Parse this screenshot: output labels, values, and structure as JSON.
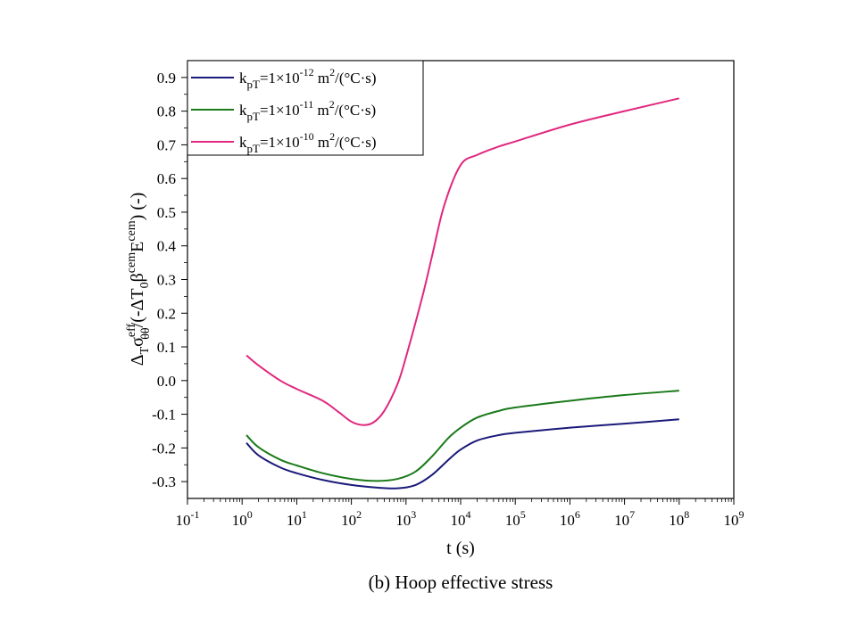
{
  "chart_data": {
    "type": "line",
    "title": "",
    "caption": "(b) Hoop effective stress",
    "xlabel": "t (s)",
    "ylabel": "ΔTσθθeff/(-ΔT0βcemEcem) (-)",
    "x_scale": "log",
    "xlim": [
      0.1,
      1000000000
    ],
    "ylim": [
      -0.35,
      0.95
    ],
    "x_ticks": [
      0.1,
      1,
      10,
      100,
      1000,
      10000,
      100000,
      1000000,
      10000000,
      100000000,
      1000000000
    ],
    "x_tick_labels": [
      {
        "base": "10",
        "exp": "-1"
      },
      {
        "base": "10",
        "exp": "0"
      },
      {
        "base": "10",
        "exp": "1"
      },
      {
        "base": "10",
        "exp": "2"
      },
      {
        "base": "10",
        "exp": "3"
      },
      {
        "base": "10",
        "exp": "4"
      },
      {
        "base": "10",
        "exp": "5"
      },
      {
        "base": "10",
        "exp": "6"
      },
      {
        "base": "10",
        "exp": "7"
      },
      {
        "base": "10",
        "exp": "8"
      },
      {
        "base": "10",
        "exp": "9"
      }
    ],
    "y_ticks": [
      -0.3,
      -0.2,
      -0.1,
      0.0,
      0.1,
      0.2,
      0.3,
      0.4,
      0.5,
      0.6,
      0.7,
      0.8,
      0.9
    ],
    "y_tick_labels": [
      "-0.3",
      "-0.2",
      "-0.1",
      "0.0",
      "0.1",
      "0.2",
      "0.3",
      "0.4",
      "0.5",
      "0.6",
      "0.7",
      "0.8",
      "0.9"
    ],
    "grid": false,
    "legend_position": "top-left",
    "series": [
      {
        "name": "kpT=1×10-12 m2/(°C·s)",
        "legend": {
          "k": "k",
          "sub": "pT",
          "pre": "=1×10",
          "exp": "-12",
          "unit": " m",
          "unit_exp": "2",
          "post": "/(°C·s)"
        },
        "color": "#1a1a7a",
        "x": [
          1.2,
          2,
          5,
          10,
          30,
          100,
          300,
          700,
          1500,
          3000,
          6000,
          10000,
          20000,
          50000,
          100000,
          1000000,
          10000000,
          100000000
        ],
        "y": [
          -0.185,
          -0.222,
          -0.258,
          -0.275,
          -0.295,
          -0.31,
          -0.318,
          -0.32,
          -0.31,
          -0.28,
          -0.235,
          -0.205,
          -0.178,
          -0.162,
          -0.155,
          -0.14,
          -0.128,
          -0.115
        ]
      },
      {
        "name": "kpT=1×10-11 m2/(°C·s)",
        "legend": {
          "k": "k",
          "sub": "pT",
          "pre": "=1×10",
          "exp": "-11",
          "unit": " m",
          "unit_exp": "2",
          "post": "/(°C·s)"
        },
        "color": "#1a7a1a",
        "x": [
          1.2,
          2,
          5,
          10,
          30,
          100,
          300,
          700,
          1500,
          3000,
          6000,
          10000,
          20000,
          50000,
          100000,
          1000000,
          10000000,
          100000000
        ],
        "y": [
          -0.162,
          -0.198,
          -0.235,
          -0.252,
          -0.275,
          -0.292,
          -0.298,
          -0.292,
          -0.27,
          -0.225,
          -0.17,
          -0.14,
          -0.11,
          -0.09,
          -0.08,
          -0.06,
          -0.043,
          -0.03
        ]
      },
      {
        "name": "kpT=1×10-10 m2/(°C·s)",
        "legend": {
          "k": "k",
          "sub": "pT",
          "pre": "=1×10",
          "exp": "-10",
          "unit": " m",
          "unit_exp": "2",
          "post": "/(°C·s)"
        },
        "color": "#e0287e",
        "x": [
          1.2,
          2,
          5,
          10,
          30,
          60,
          100,
          160,
          250,
          400,
          700,
          1000,
          2000,
          3000,
          5000,
          10000,
          20000,
          50000,
          100000,
          1000000,
          10000000,
          100000000
        ],
        "y": [
          0.075,
          0.045,
          0.0,
          -0.025,
          -0.06,
          -0.095,
          -0.122,
          -0.132,
          -0.125,
          -0.09,
          -0.01,
          0.07,
          0.25,
          0.37,
          0.52,
          0.64,
          0.67,
          0.695,
          0.71,
          0.76,
          0.8,
          0.838
        ]
      }
    ]
  }
}
